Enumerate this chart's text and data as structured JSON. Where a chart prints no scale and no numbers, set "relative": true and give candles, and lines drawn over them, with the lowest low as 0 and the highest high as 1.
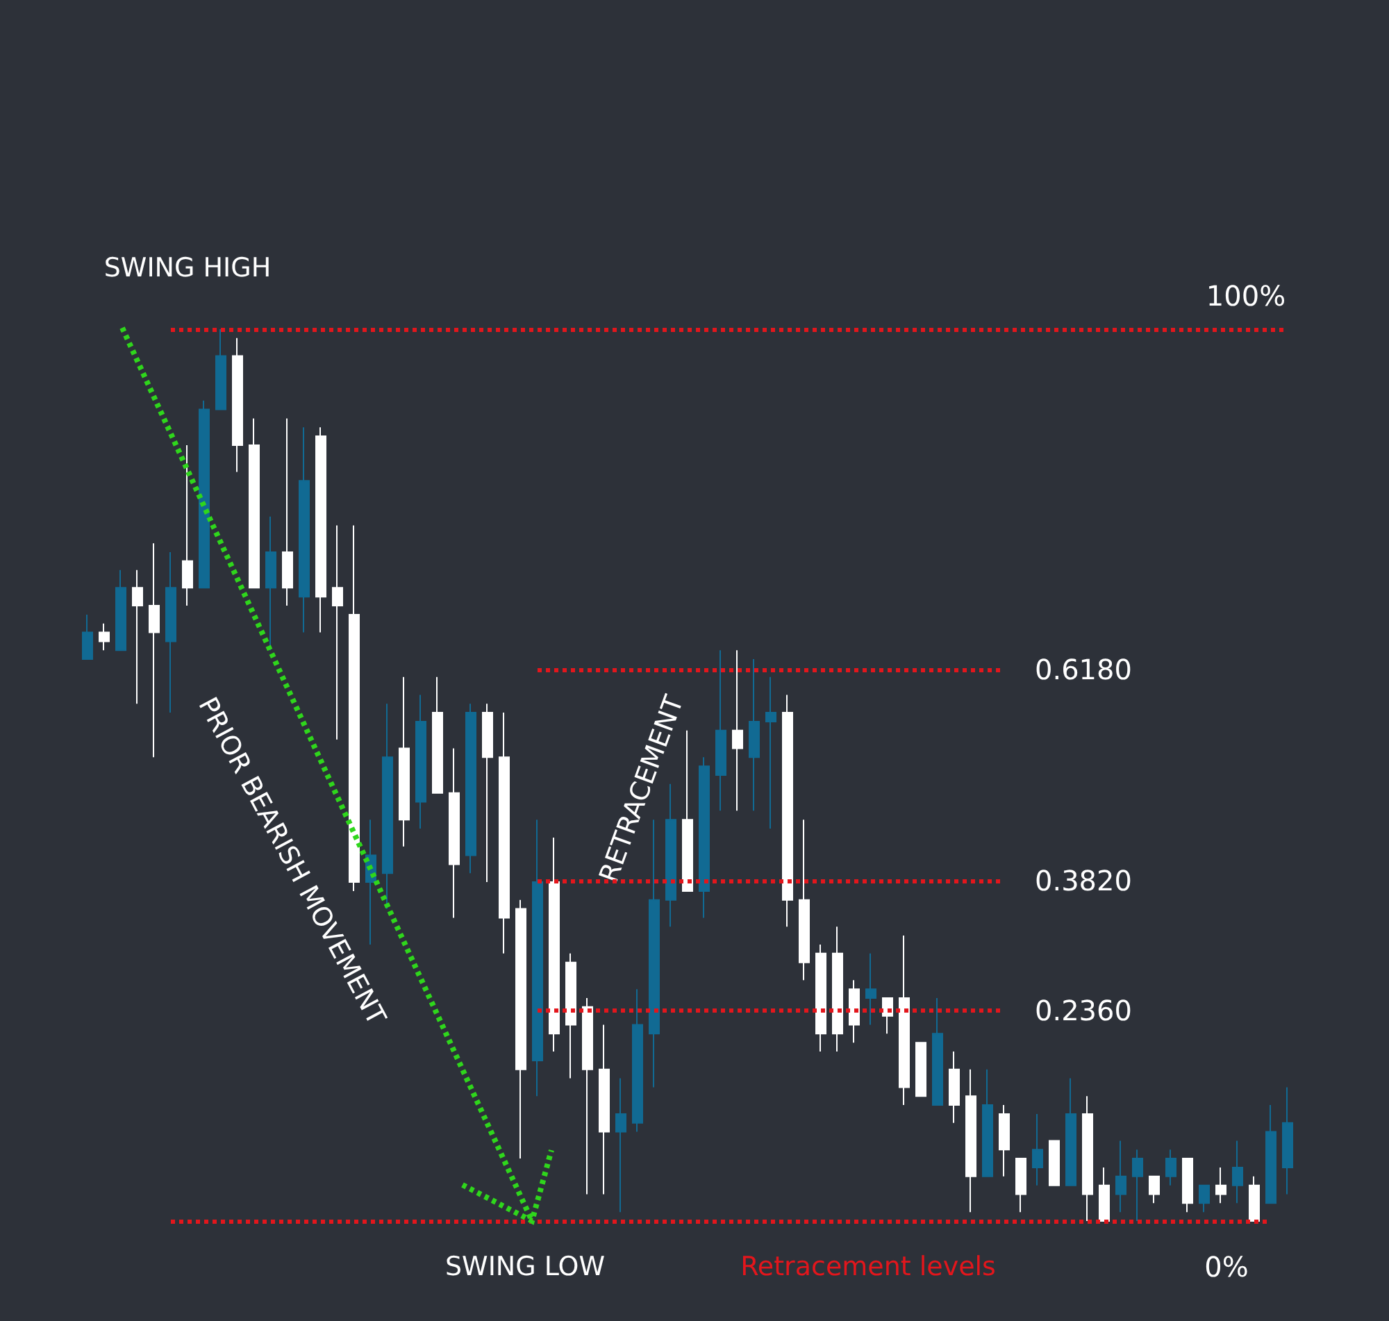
{
  "chart_data": {
    "type": "candlestick",
    "relative": true,
    "categories": [
      null,
      null,
      null,
      null,
      null,
      null,
      null,
      null,
      null,
      null,
      null,
      null,
      null,
      null,
      null,
      null,
      null,
      null,
      null,
      null,
      null,
      null,
      null,
      null,
      null,
      null,
      null,
      null,
      null,
      null,
      null,
      null,
      null,
      null,
      null,
      null,
      null,
      null,
      null,
      null,
      null,
      null,
      null,
      null,
      null,
      null,
      null,
      null,
      null,
      null,
      null,
      null,
      null,
      null,
      null,
      null,
      null,
      null,
      null,
      null,
      null,
      null,
      null,
      null,
      null,
      null,
      null,
      null,
      null,
      null,
      null,
      null,
      null
    ],
    "ohlc": [
      [
        0.63,
        0.68,
        0.63,
        0.66
      ],
      [
        0.66,
        0.67,
        0.64,
        0.65
      ],
      [
        0.64,
        0.73,
        0.64,
        0.71
      ],
      [
        0.71,
        0.73,
        0.58,
        0.69
      ],
      [
        0.69,
        0.76,
        0.52,
        0.66
      ],
      [
        0.65,
        0.75,
        0.57,
        0.71
      ],
      [
        0.74,
        0.87,
        0.69,
        0.71
      ],
      [
        0.71,
        0.92,
        0.71,
        0.91
      ],
      [
        0.91,
        1,
        0.91,
        0.97
      ],
      [
        0.97,
        0.99,
        0.84,
        0.87
      ],
      [
        0.87,
        0.9,
        0.71,
        0.71
      ],
      [
        0.71,
        0.79,
        0.64,
        0.75
      ],
      [
        0.75,
        0.9,
        0.69,
        0.71
      ],
      [
        0.7,
        0.89,
        0.66,
        0.83
      ],
      [
        0.88,
        0.89,
        0.66,
        0.7
      ],
      [
        0.71,
        0.78,
        0.54,
        0.69
      ],
      [
        0.68,
        0.78,
        0.37,
        0.38
      ],
      [
        0.38,
        0.45,
        0.31,
        0.41
      ],
      [
        0.39,
        0.58,
        0.35,
        0.52
      ],
      [
        0.53,
        0.61,
        0.42,
        0.45
      ],
      [
        0.47,
        0.59,
        0.44,
        0.56
      ],
      [
        0.57,
        0.61,
        0.48,
        0.48
      ],
      [
        0.48,
        0.53,
        0.34,
        0.4
      ],
      [
        0.41,
        0.58,
        0.39,
        0.57
      ],
      [
        0.57,
        0.58,
        0.38,
        0.52
      ],
      [
        0.52,
        0.57,
        0.3,
        0.34
      ],
      [
        0.35,
        0.36,
        0.07,
        0.17
      ],
      [
        0.18,
        0.45,
        0.14,
        0.38
      ],
      [
        0.38,
        0.43,
        0.19,
        0.21
      ],
      [
        0.29,
        0.3,
        0.16,
        0.22
      ],
      [
        0.24,
        0.25,
        0.03,
        0.17
      ],
      [
        0.17,
        0.22,
        0.03,
        0.1
      ],
      [
        0.1,
        0.16,
        0.01,
        0.12
      ],
      [
        0.11,
        0.26,
        0.1,
        0.22
      ],
      [
        0.21,
        0.45,
        0.15,
        0.36
      ],
      [
        0.36,
        0.49,
        0.33,
        0.45
      ],
      [
        0.45,
        0.55,
        0.37,
        0.37
      ],
      [
        0.37,
        0.52,
        0.34,
        0.51
      ],
      [
        0.5,
        0.64,
        0.46,
        0.55
      ],
      [
        0.55,
        0.64,
        0.46,
        0.53
      ],
      [
        0.52,
        0.63,
        0.46,
        0.56
      ],
      [
        0.56,
        0.61,
        0.44,
        0.57
      ],
      [
        0.57,
        0.59,
        0.33,
        0.36
      ],
      [
        0.36,
        0.45,
        0.27,
        0.29
      ],
      [
        0.3,
        0.31,
        0.19,
        0.21
      ],
      [
        0.3,
        0.33,
        0.19,
        0.21
      ],
      [
        0.26,
        0.27,
        0.2,
        0.22
      ],
      [
        0.25,
        0.3,
        0.22,
        0.26
      ],
      [
        0.25,
        0.25,
        0.21,
        0.23
      ],
      [
        0.25,
        0.32,
        0.13,
        0.15
      ],
      [
        0.2,
        0.2,
        0.14,
        0.14
      ],
      [
        0.13,
        0.25,
        0.13,
        0.21
      ],
      [
        0.17,
        0.19,
        0.11,
        0.13
      ],
      [
        0.14,
        0.17,
        0.01,
        0.05
      ],
      [
        0.05,
        0.17,
        0.05,
        0.13
      ],
      [
        0.12,
        0.13,
        0.05,
        0.08
      ],
      [
        0.07,
        0.07,
        0.01,
        0.03
      ],
      [
        0.06,
        0.12,
        0.04,
        0.08
      ],
      [
        0.09,
        0.09,
        0.04,
        0.04
      ],
      [
        0.04,
        0.16,
        0.04,
        0.12
      ],
      [
        0.12,
        0.14,
        0,
        0.03
      ],
      [
        0.04,
        0.06,
        0,
        0
      ],
      [
        0.03,
        0.09,
        0.01,
        0.05
      ],
      [
        0.05,
        0.08,
        0,
        0.07
      ],
      [
        0.05,
        0.05,
        0.02,
        0.03
      ],
      [
        0.05,
        0.08,
        0.04,
        0.07
      ],
      [
        0.07,
        0.07,
        0.01,
        0.02
      ],
      [
        0.02,
        0.04,
        0.01,
        0.04
      ],
      [
        0.04,
        0.06,
        0.02,
        0.03
      ],
      [
        0.04,
        0.09,
        0.02,
        0.06
      ],
      [
        0.04,
        0.05,
        0,
        0
      ],
      [
        0.02,
        0.13,
        0.02,
        0.1
      ],
      [
        0.06,
        0.15,
        0.03,
        0.11
      ]
    ],
    "colors": [
      "#116a93",
      "#ffffff",
      "#116a93",
      "#ffffff",
      "#ffffff",
      "#116a93",
      "#ffffff",
      "#116a93",
      "#116a93",
      "#ffffff",
      "#ffffff",
      "#116a93",
      "#ffffff",
      "#116a93",
      "#ffffff",
      "#ffffff",
      "#ffffff",
      "#116a93",
      "#116a93",
      "#ffffff",
      "#116a93",
      "#ffffff",
      "#ffffff",
      "#116a93",
      "#ffffff",
      "#ffffff",
      "#ffffff",
      "#116a93",
      "#ffffff",
      "#ffffff",
      "#ffffff",
      "#ffffff",
      "#116a93",
      "#116a93",
      "#116a93",
      "#116a93",
      "#ffffff",
      "#116a93",
      "#116a93",
      "#ffffff",
      "#116a93",
      "#116a93",
      "#ffffff",
      "#ffffff",
      "#ffffff",
      "#ffffff",
      "#ffffff",
      "#116a93",
      "#ffffff",
      "#ffffff",
      "#ffffff",
      "#116a93",
      "#ffffff",
      "#ffffff",
      "#116a93",
      "#ffffff",
      "#ffffff",
      "#116a93",
      "#ffffff",
      "#116a93",
      "#ffffff",
      "#ffffff",
      "#116a93",
      "#116a93",
      "#ffffff",
      "#116a93",
      "#ffffff",
      "#116a93",
      "#ffffff",
      "#116a93",
      "#ffffff",
      "#116a93",
      "#116a93"
    ],
    "ref_lines": [
      {
        "axis": "y",
        "value": 1,
        "label": "100%",
        "color": "#e3161c",
        "line_style": "dotted"
      },
      {
        "axis": "y",
        "value": 0.618,
        "label": "0.6180",
        "color": "#e3161c",
        "line_style": "dotted"
      },
      {
        "axis": "y",
        "value": 0.382,
        "label": "0.3820",
        "color": "#e3161c",
        "line_style": "dotted"
      },
      {
        "axis": "y",
        "value": 0.236,
        "label": "0.2360",
        "color": "#e3161c",
        "line_style": "dotted"
      },
      {
        "axis": "y",
        "value": 0,
        "label": "0%",
        "color": "#e3161c",
        "line_style": "dotted"
      }
    ],
    "annotations": [
      "SWING HIGH",
      "PRIOR BEARISH MOVEMENT",
      "RETRACEMENT",
      "SWING LOW",
      "Retracement levels"
    ]
  }
}
